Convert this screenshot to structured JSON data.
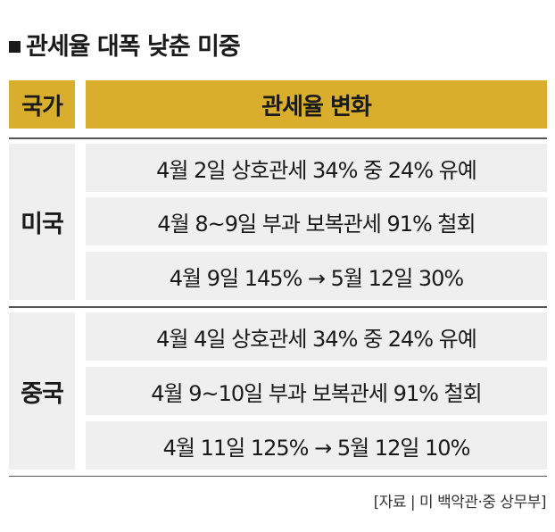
{
  "title": "관세율 대폭 낮춘 미중",
  "table": {
    "headers": {
      "country": "국가",
      "change": "관세율 변화"
    },
    "groups": [
      {
        "country": "미국",
        "rows": [
          "4월 2일 상호관세 34% 중 24% 유예",
          "4월 8~9일 부과 보복관세 91% 철회",
          "4월 9일 145% → 5월 12일 30%"
        ]
      },
      {
        "country": "중국",
        "rows": [
          "4월 4일 상호관세 34% 중 24% 유예",
          "4월 9~10일 부과 보복관세 91% 철회",
          "4월 11일 125% → 5월 12일 10%"
        ]
      }
    ]
  },
  "source": "[자료 | 미 백악관·중 상무부]",
  "colors": {
    "header_fill": "#d8ae2c",
    "cell_fill": "#efefef",
    "text": "#1a1a1a"
  }
}
